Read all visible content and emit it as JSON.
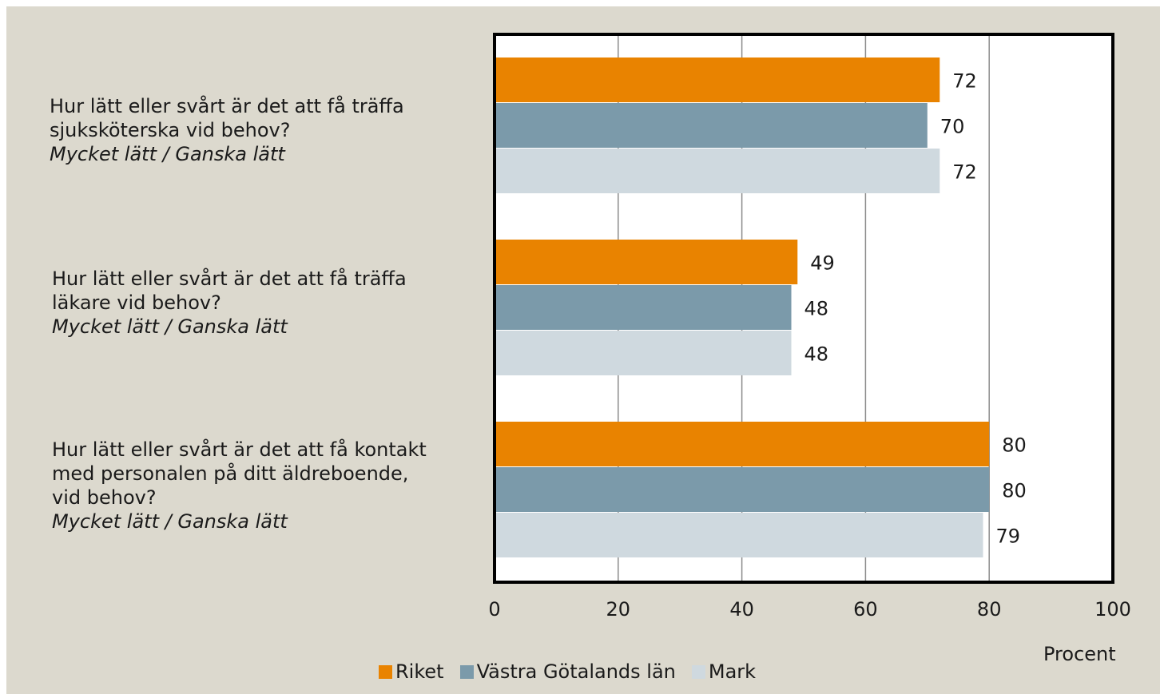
{
  "chart_data": {
    "type": "bar",
    "orientation": "horizontal",
    "categories": [
      {
        "question": "Hur lätt eller svårt är det att få träffa sjuksköterska vid behov?",
        "lines": [
          "Hur lätt eller svårt är det att få träffa",
          "sjuksköterska vid behov?"
        ],
        "answer": "Mycket lätt / Ganska lätt"
      },
      {
        "question": "Hur lätt eller svårt är det att få träffa läkare vid behov?",
        "lines": [
          "Hur lätt eller svårt är det att få träffa",
          "läkare vid behov?"
        ],
        "answer": "Mycket lätt / Ganska lätt"
      },
      {
        "question": "Hur lätt eller svårt är det att få kontakt med personalen på ditt äldreboende, vid behov?",
        "lines": [
          "Hur lätt eller svårt är det att få kontakt",
          "med personalen på ditt äldreboende,",
          "vid behov?"
        ],
        "answer": "Mycket lätt / Ganska lätt"
      }
    ],
    "series": [
      {
        "name": "Riket",
        "color": "#e98300",
        "values": [
          72,
          49,
          80
        ]
      },
      {
        "name": "Västra Götalands län",
        "color": "#7b9aaa",
        "values": [
          70,
          48,
          80
        ]
      },
      {
        "name": "Mark",
        "color": "#cfd9df",
        "values": [
          72,
          48,
          79
        ]
      }
    ],
    "xlabel": "Procent",
    "xlim": [
      0,
      100
    ],
    "xticks": [
      "0",
      "20",
      "40",
      "60",
      "80",
      "100"
    ],
    "grid": true,
    "legend": "bottom",
    "data_labels": true
  }
}
